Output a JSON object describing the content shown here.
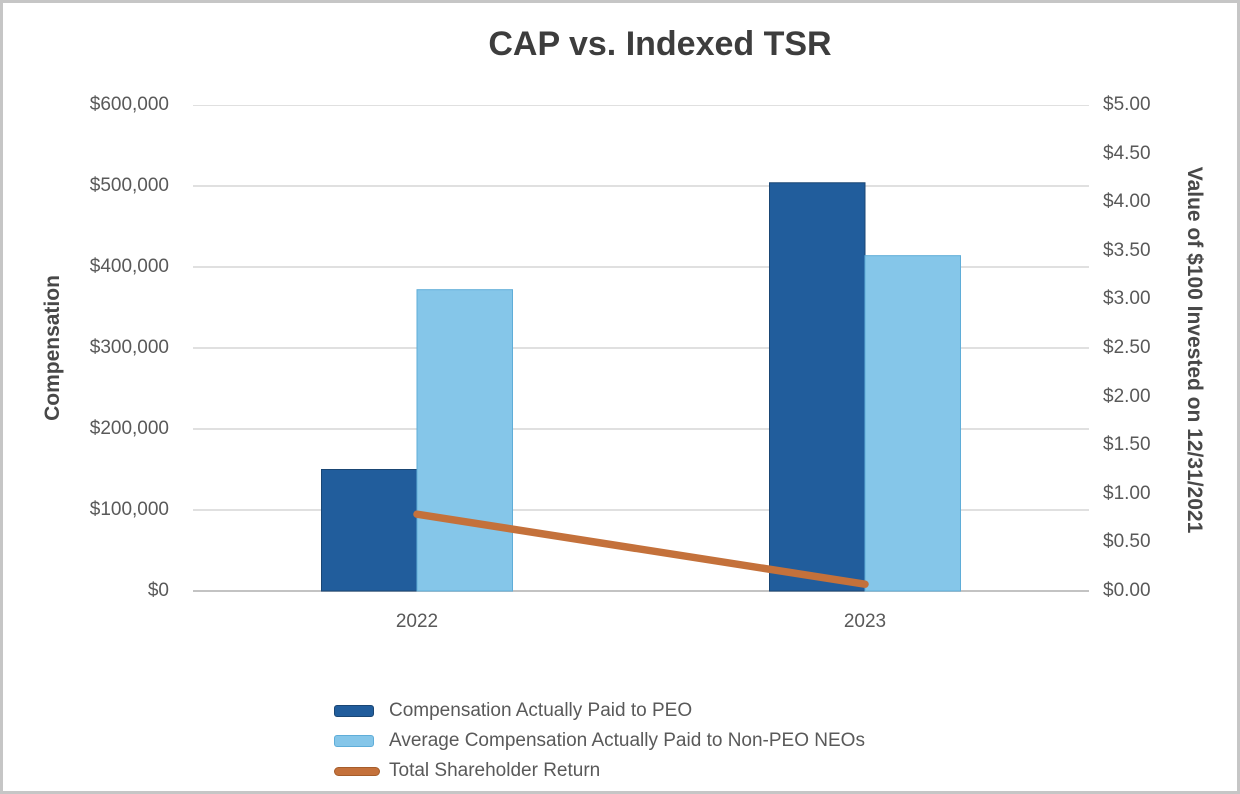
{
  "frame": {
    "border_color": "#c6c6c6",
    "background": "#ffffff"
  },
  "chart_data": {
    "type": "combo-bar-line",
    "title": "CAP vs. Indexed TSR",
    "categories": [
      "2022",
      "2023"
    ],
    "series": [
      {
        "name": "Compensation Actually Paid to PEO",
        "chart_type": "bar",
        "axis": "left",
        "color": "#215d9c",
        "border_color": "#1a4674",
        "values": [
          150000,
          504000
        ]
      },
      {
        "name": "Average Compensation Actually Paid to Non-PEO NEOs",
        "chart_type": "bar",
        "axis": "left",
        "color": "#85c6e9",
        "border_color": "#5fadd8",
        "values": [
          372000,
          414000
        ]
      },
      {
        "name": "Total Shareholder Return",
        "chart_type": "line",
        "axis": "right",
        "color": "#c4713b",
        "border_color": "#a55d2b",
        "values": [
          0.79,
          0.07
        ]
      }
    ],
    "left_axis": {
      "label": "Compensation",
      "min": 0,
      "max": 600000,
      "step": 100000,
      "ticks_top_to_bottom": [
        "$600,000",
        "$500,000",
        "$400,000",
        "$300,000",
        "$200,000",
        "$100,000",
        "$0"
      ]
    },
    "right_axis": {
      "label": "Value of $100 Invested on 12/31/2021",
      "min": 0,
      "max": 5,
      "step": 0.5,
      "ticks_top_to_bottom": [
        "$5.00",
        "$4.50",
        "$4.00",
        "$3.50",
        "$3.00",
        "$2.50",
        "$2.00",
        "$1.50",
        "$1.00",
        "$0.50",
        "$0.00"
      ]
    },
    "legend_position": "bottom-left",
    "grid": "horizontal",
    "colors": {
      "gridline": "#d6d6d6",
      "axis_line": "#c3c3c3",
      "tick_text": "#595959",
      "title_text": "#3d3d3d",
      "axis_title_text": "#484848"
    }
  }
}
